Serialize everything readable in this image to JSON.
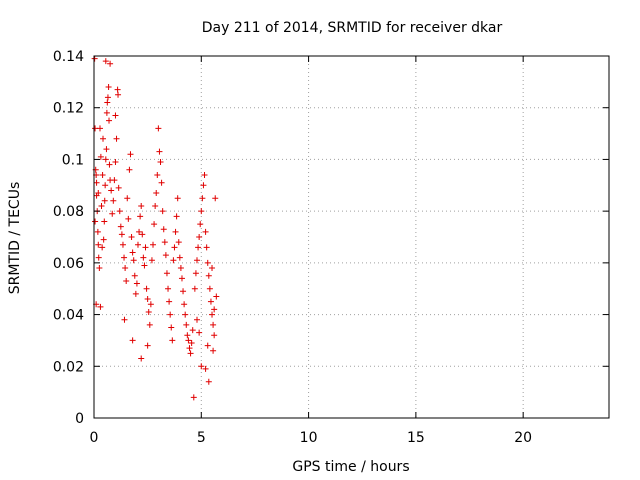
{
  "chart_data": {
    "type": "scatter",
    "title": "Day 211 of 2014, SRMTID for receiver dkar",
    "xlabel": "GPS time / hours",
    "ylabel": "SRMTID / TECUs",
    "xlim": [
      0,
      24
    ],
    "ylim": [
      0,
      0.14
    ],
    "grid": true,
    "marker": "+",
    "marker_color": "#e00000",
    "x_ticks": [
      0,
      5,
      10,
      15,
      20
    ],
    "x_tick_labels": [
      "0",
      "5",
      "10",
      "15",
      "20"
    ],
    "y_ticks": [
      0,
      0.02,
      0.04,
      0.06,
      0.08,
      0.1,
      0.12,
      0.14
    ],
    "y_tick_labels": [
      "0",
      "0.02",
      "0.04",
      "0.06",
      "0.08",
      "0.1",
      "0.12",
      "0.14"
    ],
    "series": [
      {
        "name": "SRMTID",
        "points": [
          [
            0.03,
            0.139
          ],
          [
            0.05,
            0.112
          ],
          [
            0.08,
            0.096
          ],
          [
            0.1,
            0.094
          ],
          [
            0.12,
            0.086
          ],
          [
            0.15,
            0.08
          ],
          [
            0.18,
            0.072
          ],
          [
            0.2,
            0.067
          ],
          [
            0.22,
            0.062
          ],
          [
            0.25,
            0.058
          ],
          [
            0.1,
            0.044
          ],
          [
            0.3,
            0.043
          ],
          [
            0.05,
            0.076
          ],
          [
            0.12,
            0.091
          ],
          [
            0.28,
            0.112
          ],
          [
            0.2,
            0.087
          ],
          [
            0.35,
            0.082
          ],
          [
            0.4,
            0.094
          ],
          [
            0.32,
            0.101
          ],
          [
            0.42,
            0.108
          ],
          [
            0.38,
            0.066
          ],
          [
            0.45,
            0.069
          ],
          [
            0.48,
            0.076
          ],
          [
            0.5,
            0.084
          ],
          [
            0.52,
            0.09
          ],
          [
            0.55,
            0.1
          ],
          [
            0.58,
            0.104
          ],
          [
            0.6,
            0.118
          ],
          [
            0.62,
            0.122
          ],
          [
            0.65,
            0.124
          ],
          [
            0.55,
            0.138
          ],
          [
            0.75,
            0.137
          ],
          [
            0.68,
            0.128
          ],
          [
            0.7,
            0.115
          ],
          [
            0.72,
            0.098
          ],
          [
            0.75,
            0.092
          ],
          [
            0.8,
            0.088
          ],
          [
            0.85,
            0.079
          ],
          [
            0.9,
            0.084
          ],
          [
            0.95,
            0.092
          ],
          [
            1.0,
            0.099
          ],
          [
            1.05,
            0.108
          ],
          [
            1.1,
            0.127
          ],
          [
            1.12,
            0.125
          ],
          [
            1.0,
            0.117
          ],
          [
            1.15,
            0.089
          ],
          [
            1.2,
            0.08
          ],
          [
            1.25,
            0.074
          ],
          [
            1.3,
            0.071
          ],
          [
            1.35,
            0.067
          ],
          [
            1.4,
            0.062
          ],
          [
            1.45,
            0.058
          ],
          [
            1.5,
            0.053
          ],
          [
            1.42,
            0.038
          ],
          [
            1.55,
            0.085
          ],
          [
            1.6,
            0.077
          ],
          [
            1.65,
            0.096
          ],
          [
            1.7,
            0.102
          ],
          [
            1.75,
            0.07
          ],
          [
            1.8,
            0.064
          ],
          [
            1.85,
            0.061
          ],
          [
            1.9,
            0.055
          ],
          [
            1.8,
            0.03
          ],
          [
            1.95,
            0.048
          ],
          [
            2.0,
            0.052
          ],
          [
            2.05,
            0.067
          ],
          [
            2.1,
            0.072
          ],
          [
            2.15,
            0.078
          ],
          [
            2.2,
            0.082
          ],
          [
            2.25,
            0.071
          ],
          [
            2.3,
            0.062
          ],
          [
            2.35,
            0.059
          ],
          [
            2.4,
            0.066
          ],
          [
            2.2,
            0.023
          ],
          [
            2.45,
            0.05
          ],
          [
            2.5,
            0.046
          ],
          [
            2.55,
            0.041
          ],
          [
            2.6,
            0.036
          ],
          [
            2.5,
            0.028
          ],
          [
            2.65,
            0.044
          ],
          [
            2.7,
            0.061
          ],
          [
            2.75,
            0.067
          ],
          [
            2.8,
            0.075
          ],
          [
            2.85,
            0.082
          ],
          [
            2.9,
            0.087
          ],
          [
            2.95,
            0.094
          ],
          [
            3.0,
            0.112
          ],
          [
            3.05,
            0.103
          ],
          [
            3.1,
            0.099
          ],
          [
            3.15,
            0.091
          ],
          [
            3.2,
            0.08
          ],
          [
            3.25,
            0.073
          ],
          [
            3.3,
            0.068
          ],
          [
            3.35,
            0.063
          ],
          [
            3.4,
            0.056
          ],
          [
            3.45,
            0.05
          ],
          [
            3.5,
            0.045
          ],
          [
            3.55,
            0.04
          ],
          [
            3.6,
            0.035
          ],
          [
            3.65,
            0.03
          ],
          [
            3.7,
            0.061
          ],
          [
            3.75,
            0.066
          ],
          [
            3.8,
            0.072
          ],
          [
            3.85,
            0.078
          ],
          [
            3.9,
            0.085
          ],
          [
            3.95,
            0.068
          ],
          [
            4.0,
            0.062
          ],
          [
            4.05,
            0.058
          ],
          [
            4.1,
            0.054
          ],
          [
            4.15,
            0.049
          ],
          [
            4.2,
            0.044
          ],
          [
            4.25,
            0.04
          ],
          [
            4.3,
            0.036
          ],
          [
            4.35,
            0.032
          ],
          [
            4.4,
            0.03
          ],
          [
            4.45,
            0.027
          ],
          [
            4.5,
            0.025
          ],
          [
            4.55,
            0.029
          ],
          [
            4.6,
            0.034
          ],
          [
            4.65,
            0.008
          ],
          [
            4.7,
            0.05
          ],
          [
            4.75,
            0.056
          ],
          [
            4.8,
            0.061
          ],
          [
            4.85,
            0.066
          ],
          [
            4.9,
            0.07
          ],
          [
            4.95,
            0.075
          ],
          [
            5.0,
            0.08
          ],
          [
            5.05,
            0.085
          ],
          [
            5.1,
            0.09
          ],
          [
            5.15,
            0.094
          ],
          [
            5.2,
            0.072
          ],
          [
            5.25,
            0.066
          ],
          [
            5.3,
            0.06
          ],
          [
            5.35,
            0.055
          ],
          [
            5.4,
            0.05
          ],
          [
            5.45,
            0.045
          ],
          [
            5.5,
            0.04
          ],
          [
            5.55,
            0.036
          ],
          [
            5.6,
            0.032
          ],
          [
            5.65,
            0.085
          ],
          [
            5.0,
            0.02
          ],
          [
            5.2,
            0.019
          ],
          [
            5.35,
            0.014
          ],
          [
            5.55,
            0.026
          ],
          [
            5.6,
            0.042
          ],
          [
            5.7,
            0.047
          ],
          [
            5.5,
            0.058
          ],
          [
            5.3,
            0.028
          ],
          [
            4.9,
            0.033
          ],
          [
            4.8,
            0.038
          ]
        ]
      }
    ]
  }
}
